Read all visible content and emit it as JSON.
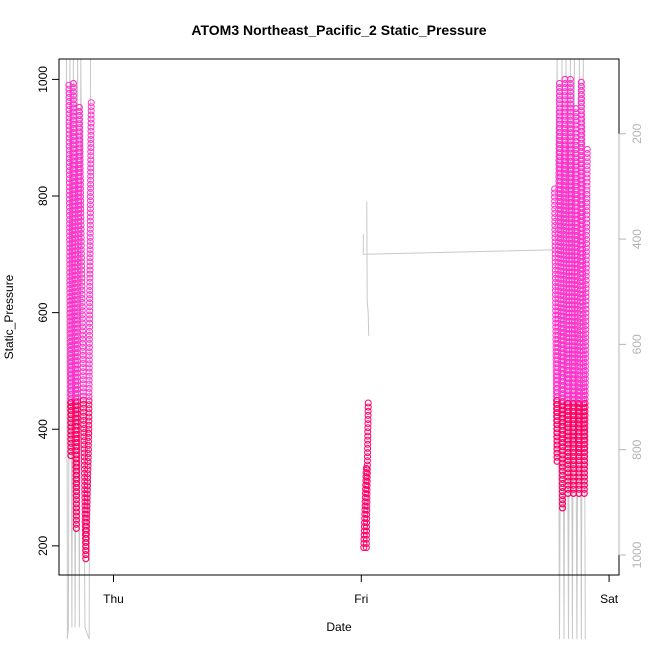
{
  "chart_data": {
    "type": "scatter",
    "title": "ATOM3 Northeast_Pacific_2 Static_Pressure",
    "xlabel": "Date",
    "ylabel": "Static_Pressure",
    "x_ticks": [
      "Thu",
      "Fri",
      "Sat"
    ],
    "x_range_days": [
      -0.22,
      2.04
    ],
    "y_range": [
      150,
      1035
    ],
    "y_ticks": [
      200,
      400,
      600,
      800,
      1000
    ],
    "y2_range": [
      1038,
      58
    ],
    "y2_ticks": [
      200,
      400,
      600,
      800,
      1000
    ],
    "grid": false,
    "colors": {
      "points_light": "#ff33cc",
      "points_dark": "#ff0066",
      "depth_trace": "#c8c8c8",
      "right_axis": "#b4b4b4",
      "frame": "#000000"
    },
    "profiles": [
      {
        "t0": -0.18,
        "t1": -0.172,
        "top": 990,
        "bottom": 355
      },
      {
        "t0": -0.172,
        "t1": -0.162,
        "top": 355,
        "bottom": 993
      },
      {
        "t0": -0.162,
        "t1": -0.15,
        "top": 993,
        "bottom": 230
      },
      {
        "t0": -0.15,
        "t1": -0.138,
        "top": 230,
        "bottom": 952
      },
      {
        "t0": -0.138,
        "t1": -0.112,
        "top": 952,
        "bottom": 178
      },
      {
        "t0": -0.112,
        "t1": -0.1,
        "top": 178,
        "bottom": 393
      },
      {
        "t0": -0.1,
        "t1": -0.09,
        "top": 393,
        "bottom": 960
      },
      {
        "t0": 1.01,
        "t1": 1.02,
        "top": 197,
        "bottom": 333
      },
      {
        "t0": 1.02,
        "t1": 1.028,
        "top": 197,
        "bottom": 445
      },
      {
        "t0": 1.78,
        "t1": 1.79,
        "top": 812,
        "bottom": 345
      },
      {
        "t0": 1.79,
        "t1": 1.8,
        "top": 345,
        "bottom": 993
      },
      {
        "t0": 1.8,
        "t1": 1.812,
        "top": 993,
        "bottom": 265
      },
      {
        "t0": 1.812,
        "t1": 1.822,
        "top": 265,
        "bottom": 1000
      },
      {
        "t0": 1.822,
        "t1": 1.834,
        "top": 1000,
        "bottom": 290
      },
      {
        "t0": 1.834,
        "t1": 1.844,
        "top": 290,
        "bottom": 1000
      },
      {
        "t0": 1.844,
        "t1": 1.856,
        "top": 1000,
        "bottom": 290
      },
      {
        "t0": 1.856,
        "t1": 1.866,
        "top": 290,
        "bottom": 950
      },
      {
        "t0": 1.866,
        "t1": 1.878,
        "top": 950,
        "bottom": 290
      },
      {
        "t0": 1.878,
        "t1": 1.888,
        "top": 290,
        "bottom": 995
      },
      {
        "t0": 1.888,
        "t1": 1.9,
        "top": 995,
        "bottom": 290
      },
      {
        "t0": 1.9,
        "t1": 1.912,
        "top": 290,
        "bottom": 880
      }
    ]
  }
}
